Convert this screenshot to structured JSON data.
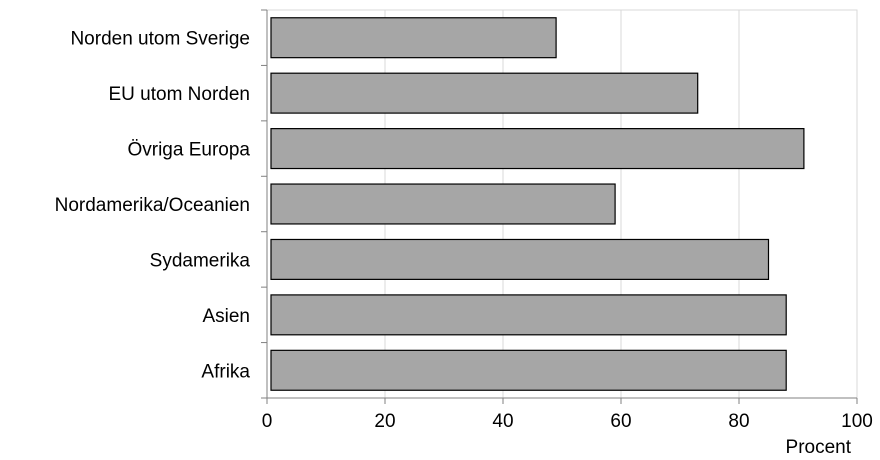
{
  "chart_data": {
    "type": "bar",
    "orientation": "horizontal",
    "categories": [
      "Norden utom Sverige",
      "EU utom Norden",
      "Övriga Europa",
      "Nordamerika/Oceanien",
      "Sydamerika",
      "Asien",
      "Afrika"
    ],
    "values": [
      49,
      73,
      91,
      59,
      85,
      88,
      88
    ],
    "xlabel": "Procent",
    "ylabel": "",
    "xlim": [
      0,
      100
    ],
    "x_ticks": [
      "0",
      "20",
      "40",
      "60",
      "80",
      "100"
    ],
    "grid": "vertical",
    "legend": "none",
    "colors": {
      "bar_fill": "#a6a6a6",
      "bar_stroke": "#000000",
      "grid": "#d9d9d9",
      "axis": "#808080"
    }
  }
}
